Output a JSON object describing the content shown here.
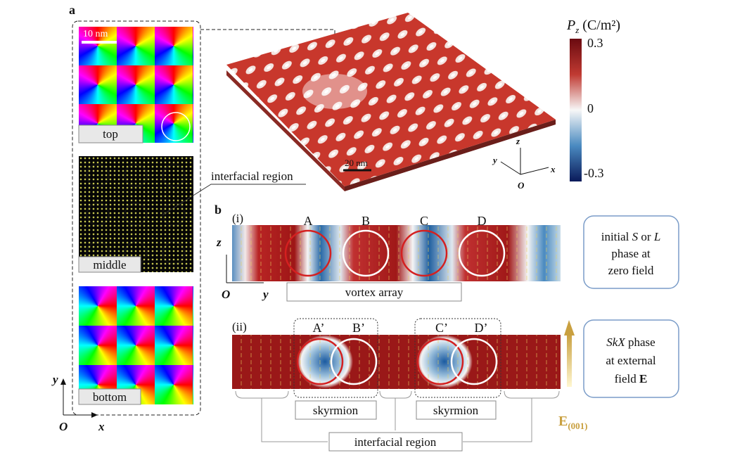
{
  "panel_a": {
    "label": "a",
    "scale_bar": "10 nm",
    "layers": [
      "top",
      "middle",
      "bottom"
    ],
    "annotation": "interfacial region",
    "axes": {
      "y": "y",
      "x": "x",
      "origin": "O"
    }
  },
  "slab": {
    "scale_bar": "20 nm",
    "axes": {
      "z": "z",
      "y": "y",
      "x": "x",
      "origin": "O"
    }
  },
  "colorbar": {
    "symbol": "P",
    "subscript": "z",
    "unit": " (C/m²)",
    "ticks": [
      "0.3",
      "0",
      "-0.3"
    ]
  },
  "panel_b": {
    "label": "b",
    "row_i": {
      "label": "(i)",
      "vortices": [
        "A",
        "B",
        "C",
        "D"
      ],
      "caption": "vortex array",
      "axes": {
        "z": "z",
        "y": "y",
        "origin": "O"
      },
      "note": [
        [
          "initial ",
          "S",
          " or ",
          "L"
        ],
        [
          "phase at"
        ],
        [
          "zero field"
        ]
      ]
    },
    "row_ii": {
      "label": "(ii)",
      "vortices": [
        "A’",
        "B’",
        "C’",
        "D’"
      ],
      "captions": [
        "skyrmion",
        "skyrmion"
      ],
      "interfacial": "interfacial region",
      "note": [
        [
          "SkX",
          " phase"
        ],
        [
          "at external"
        ],
        [
          "field ",
          "E"
        ]
      ],
      "field": {
        "symbol": "E",
        "subscript": "(001)"
      }
    }
  }
}
